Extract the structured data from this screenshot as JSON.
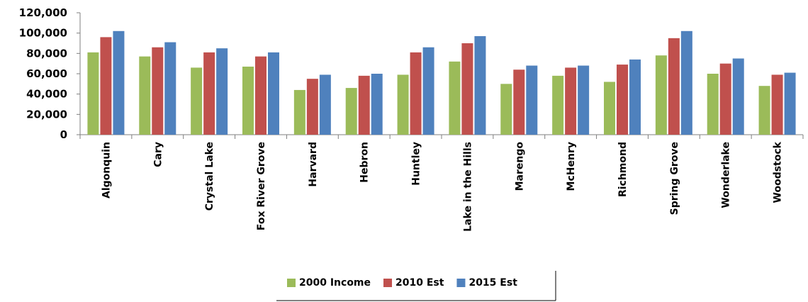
{
  "chart_data": {
    "type": "bar",
    "title": "",
    "xlabel": "",
    "ylabel": "",
    "ylim": [
      0,
      120000
    ],
    "yticks": [
      "0",
      "20,000",
      "40,000",
      "60,000",
      "80,000",
      "100,000",
      "120,000"
    ],
    "grid": false,
    "legend_position": "bottom",
    "categories": [
      "Algonquin",
      "Cary",
      "Crystal Lake",
      "Fox River Grove",
      "Harvard",
      "Hebron",
      "Huntley",
      "Lake in the Hills",
      "Marengo",
      "McHenry",
      "Richmond",
      "Spring Grove",
      "Wonderlake",
      "Woodstock"
    ],
    "series": [
      {
        "name": "2000 Income",
        "color": "#9bbb59",
        "values": [
          81000,
          77000,
          66000,
          67000,
          44000,
          46000,
          59000,
          72000,
          50000,
          58000,
          52000,
          78000,
          60000,
          48000
        ]
      },
      {
        "name": "2010 Est",
        "color": "#c0504d",
        "values": [
          96000,
          86000,
          81000,
          77000,
          55000,
          58000,
          81000,
          90000,
          64000,
          66000,
          69000,
          95000,
          70000,
          59000
        ]
      },
      {
        "name": "2015 Est",
        "color": "#4f81bd",
        "values": [
          102000,
          91000,
          85000,
          81000,
          59000,
          60000,
          86000,
          97000,
          68000,
          68000,
          74000,
          102000,
          75000,
          61000
        ]
      }
    ]
  }
}
